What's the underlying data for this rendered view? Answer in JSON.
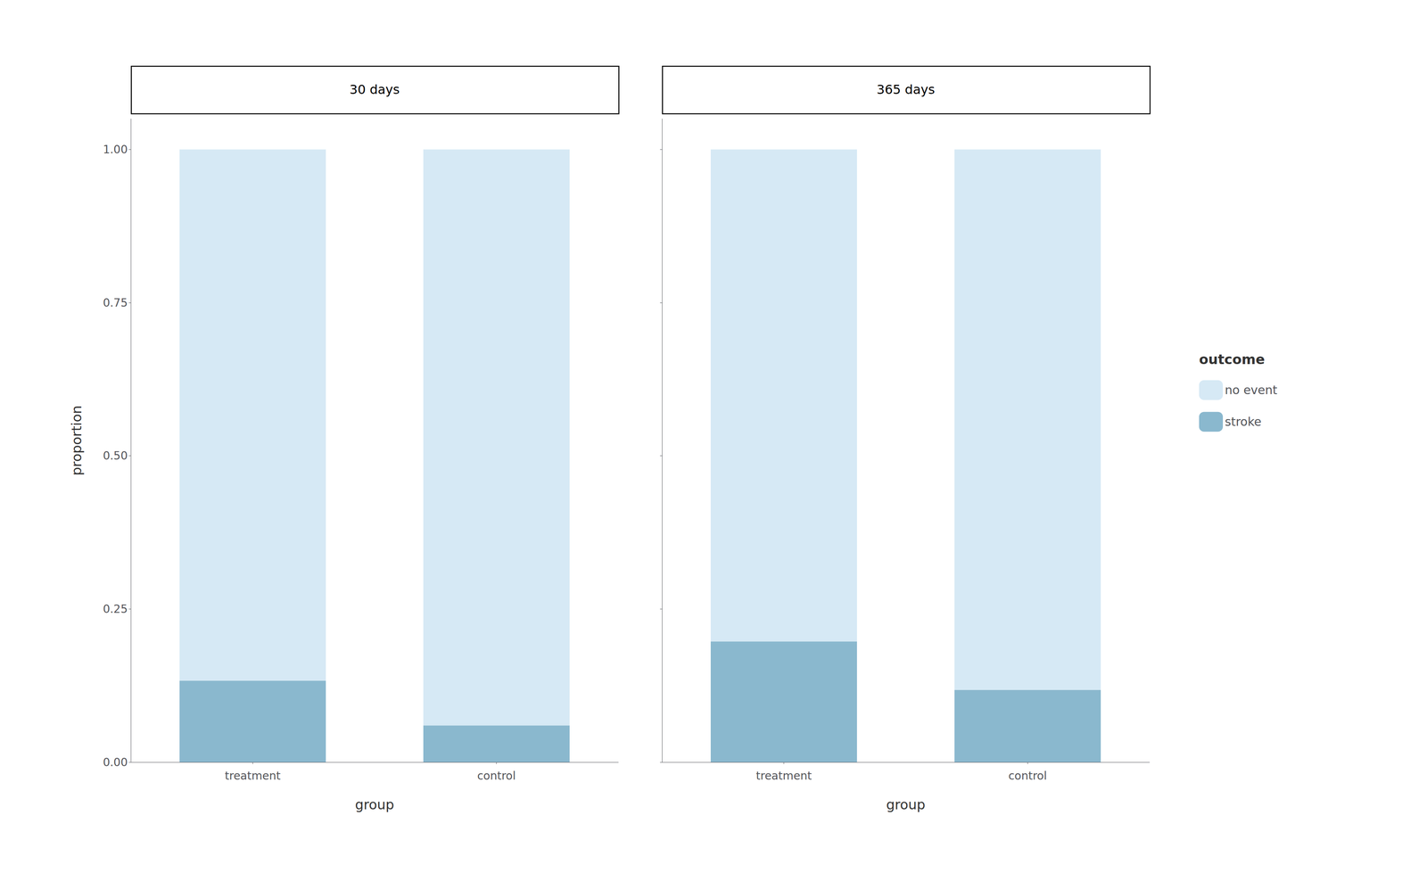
{
  "chart_data": [
    {
      "type": "bar",
      "title": "30 days",
      "stacked": true,
      "categories": [
        "treatment",
        "control"
      ],
      "series": [
        {
          "name": "stroke",
          "color": "#8ab8ce",
          "values": [
            0.133,
            0.06
          ]
        },
        {
          "name": "no event",
          "color": "#d6e9f5",
          "values": [
            0.867,
            0.94
          ]
        }
      ],
      "xlabel": "group",
      "ylabel": "proportion",
      "ylim": [
        0,
        1.05
      ],
      "yticks": [
        {
          "value": 0.0,
          "label": "0.00"
        },
        {
          "value": 0.25,
          "label": "0.25"
        },
        {
          "value": 0.5,
          "label": "0.50"
        },
        {
          "value": 0.75,
          "label": "0.75"
        },
        {
          "value": 1.0,
          "label": "1.00"
        }
      ],
      "grid": false
    },
    {
      "type": "bar",
      "title": "365 days",
      "stacked": true,
      "categories": [
        "treatment",
        "control"
      ],
      "series": [
        {
          "name": "stroke",
          "color": "#8ab8ce",
          "values": [
            0.197,
            0.118
          ]
        },
        {
          "name": "no event",
          "color": "#d6e9f5",
          "values": [
            0.803,
            0.882
          ]
        }
      ],
      "xlabel": "group",
      "ylim": [
        0,
        1.05
      ],
      "yticks": [
        {
          "value": 0.0,
          "label": "0.00"
        },
        {
          "value": 0.25,
          "label": "0.25"
        },
        {
          "value": 0.5,
          "label": "0.50"
        },
        {
          "value": 0.75,
          "label": "0.75"
        },
        {
          "value": 1.0,
          "label": "1.00"
        }
      ],
      "tick_labels": "x",
      "grid": false,
      "legend": "right",
      "legend_title": "outcome"
    }
  ]
}
